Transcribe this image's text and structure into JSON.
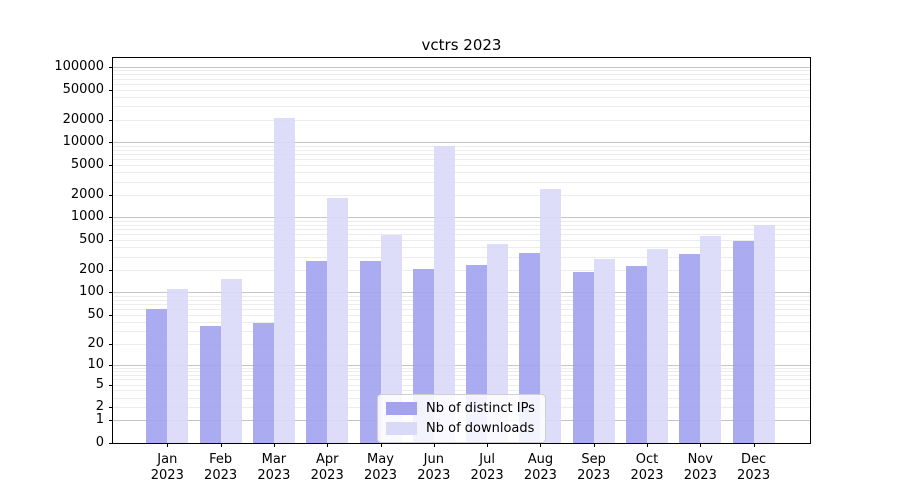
{
  "title": "vctrs 2023",
  "chart_data": {
    "type": "bar",
    "title": "vctrs 2023",
    "xlabel": "",
    "ylabel": "",
    "scale": "log1p",
    "grid": true,
    "legend_position": "lower center",
    "categories": [
      "Jan 2023",
      "Feb 2023",
      "Mar 2023",
      "Apr 2023",
      "May 2023",
      "Jun 2023",
      "Jul 2023",
      "Aug 2023",
      "Sep 2023",
      "Oct 2023",
      "Nov 2023",
      "Dec 2023"
    ],
    "series": [
      {
        "name": "Nb of distinct IPs",
        "color": "#a2a2f0",
        "values": [
          60,
          35,
          39,
          265,
          260,
          205,
          235,
          335,
          190,
          228,
          330,
          490
        ]
      },
      {
        "name": "Nb of downloads",
        "color": "#d9d9f8",
        "values": [
          110,
          150,
          21000,
          1800,
          590,
          8800,
          445,
          2400,
          280,
          385,
          560,
          800
        ]
      }
    ],
    "yticks": [
      0,
      1,
      2,
      5,
      10,
      20,
      50,
      100,
      200,
      500,
      1000,
      2000,
      5000,
      10000,
      20000,
      50000,
      100000
    ],
    "ylim": [
      0,
      127000
    ],
    "colors": {
      "major_grid": "#c4c4c4",
      "minor_grid": "#ececec",
      "spine": "#000000",
      "background": "#ffffff"
    }
  }
}
